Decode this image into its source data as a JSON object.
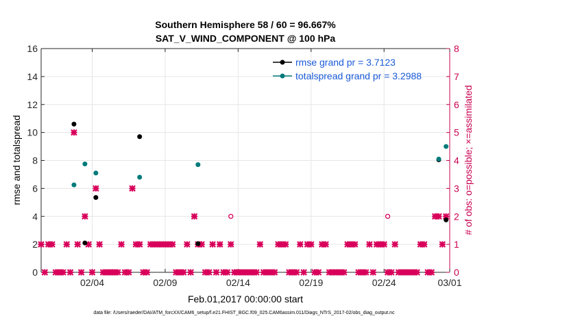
{
  "chart_data": {
    "type": "scatter",
    "title": "Southern Hemisphere 58 / 60 = 96.667%",
    "subtitle": "SAT_V_WIND_COMPONENT @ 100 hPa",
    "xlabel": "Feb.01,2017 00:00:00 start",
    "ylabel_left": "rmse and totalspread",
    "ylabel_right": "# of obs: o=possible; ×=assimilated",
    "footnote": "data file: /Users/raeder/DAI/ATM_forcXX/CAM6_setup/f.e21.FHIST_BGC.f09_025.CAM6assim.011/Diags_NTrS_2017-02/obs_diag_output.nc",
    "xlim": [
      0,
      28
    ],
    "ylim_left": [
      0,
      16
    ],
    "ylim_right": [
      0,
      8
    ],
    "xticks": [
      {
        "pos": 3.5,
        "label": "02/04"
      },
      {
        "pos": 8.5,
        "label": "02/09"
      },
      {
        "pos": 13.5,
        "label": "02/14"
      },
      {
        "pos": 18.5,
        "label": "02/19"
      },
      {
        "pos": 23.5,
        "label": "02/24"
      },
      {
        "pos": 28.0,
        "label": "03/01"
      }
    ],
    "yticks_left": [
      "0",
      "2",
      "4",
      "6",
      "8",
      "10",
      "12",
      "14",
      "16"
    ],
    "yticks_right": [
      "0",
      "1",
      "2",
      "3",
      "4",
      "5",
      "6",
      "7",
      "8"
    ],
    "colors": {
      "rmse": "#000000",
      "spread": "#007a7a",
      "obs": "#d8005a",
      "axis_right": "#c8004f",
      "legend_text": "#1a5ad8"
    },
    "legend": [
      {
        "name": "rmse grand pr = 3.7123",
        "color": "#000000"
      },
      {
        "name": "totalspread grand pr = 3.2988",
        "color": "#007a7a"
      }
    ],
    "series": [
      {
        "name": "rmse",
        "x": [
          2.25,
          3.0,
          3.75,
          6.75,
          10.75,
          27.25,
          27.75
        ],
        "y": [
          10.6,
          2.1,
          5.35,
          9.7,
          2.05,
          8.05,
          3.75
        ]
      },
      {
        "name": "totalspread",
        "x": [
          2.25,
          3.0,
          3.75,
          6.75,
          10.75,
          27.25,
          27.75
        ],
        "y": [
          6.25,
          7.75,
          7.1,
          6.8,
          7.7,
          8.1,
          9.0
        ]
      }
    ],
    "obs_possible_circles": {
      "x": [
        13.0,
        23.75
      ],
      "count": [
        2,
        2
      ]
    },
    "obs_assimilated": {
      "x": [
        0.0,
        0.25,
        0.5,
        0.75,
        1.0,
        1.25,
        1.5,
        1.75,
        2.0,
        2.25,
        2.5,
        2.75,
        3.0,
        3.25,
        3.5,
        3.75,
        4.0,
        4.25,
        4.5,
        4.75,
        5.0,
        5.25,
        5.5,
        5.75,
        6.0,
        6.25,
        6.5,
        6.75,
        7.0,
        7.25,
        7.5,
        7.75,
        8.0,
        8.25,
        8.5,
        8.75,
        9.0,
        9.25,
        9.5,
        9.75,
        10.0,
        10.25,
        10.5,
        10.75,
        11.0,
        11.25,
        11.5,
        11.75,
        12.0,
        12.25,
        12.5,
        12.75,
        13.0,
        13.25,
        13.5,
        13.75,
        14.0,
        14.25,
        14.5,
        14.75,
        15.0,
        15.25,
        15.5,
        15.75,
        16.0,
        16.25,
        16.5,
        16.75,
        17.0,
        17.25,
        17.5,
        17.75,
        18.0,
        18.25,
        18.5,
        18.75,
        19.0,
        19.25,
        19.5,
        19.75,
        20.0,
        20.25,
        20.5,
        20.75,
        21.0,
        21.25,
        21.5,
        21.75,
        22.0,
        22.25,
        22.5,
        22.75,
        23.0,
        23.25,
        23.5,
        23.75,
        24.0,
        24.25,
        24.5,
        24.75,
        25.0,
        25.25,
        25.5,
        25.75,
        26.0,
        26.25,
        26.5,
        26.75,
        27.0,
        27.25,
        27.5,
        27.75
      ],
      "count": [
        1,
        0,
        1,
        1,
        0,
        0,
        0,
        1,
        0,
        5,
        1,
        0,
        2,
        1,
        0,
        3,
        1,
        0,
        0,
        0,
        0,
        0,
        1,
        0,
        0,
        3,
        1,
        1,
        0,
        0,
        1,
        1,
        1,
        1,
        1,
        1,
        1,
        0,
        0,
        0,
        1,
        0,
        2,
        1,
        1,
        0,
        0,
        1,
        0,
        1,
        0,
        0,
        1,
        0,
        0,
        0,
        0,
        0,
        0,
        0,
        1,
        0,
        0,
        0,
        0,
        1,
        1,
        1,
        0,
        0,
        0,
        1,
        0,
        1,
        1,
        0,
        0,
        1,
        1,
        0,
        0,
        0,
        0,
        0,
        1,
        1,
        1,
        0,
        0,
        0,
        1,
        0,
        1,
        1,
        1,
        0,
        0,
        1,
        0,
        0,
        0,
        0,
        0,
        0,
        1,
        1,
        0,
        0,
        2,
        2,
        1,
        2
      ]
    }
  }
}
